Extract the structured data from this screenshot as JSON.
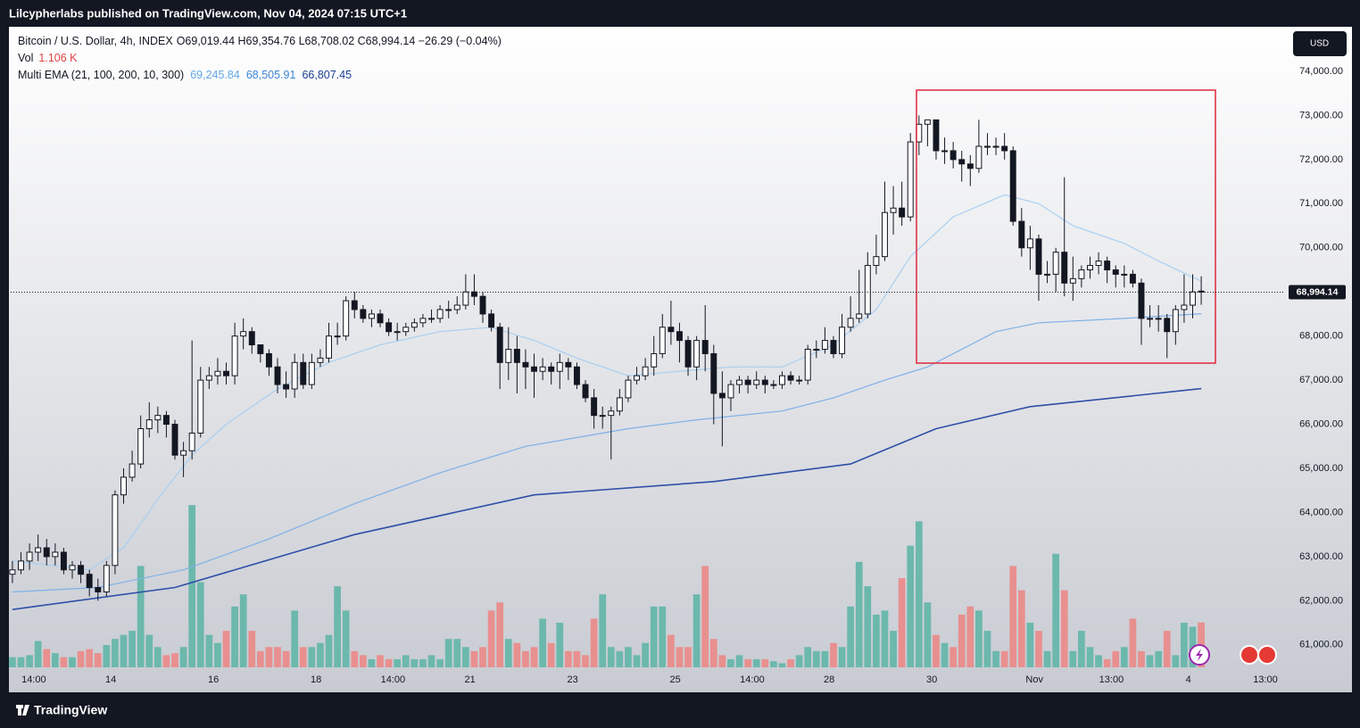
{
  "header": {
    "published": "Lilcypherlabs published on TradingView.com, Nov 04, 2024 07:15 UTC+1"
  },
  "footer": {
    "brand": "TradingView"
  },
  "chart_data": {
    "type": "candlestick",
    "title": "Bitcoin / U.S. Dollar, 4h, INDEX",
    "ohlc_label": "O69,019.44 H69,354.76 L68,708.02 C68,994.14 −26.29 (−0.04%)",
    "currency": "USD",
    "up_color": "#ffffff",
    "down_color": "#131722",
    "open": [
      62600,
      62700,
      62900,
      63100,
      63200,
      63000,
      63100,
      62700,
      62800,
      62600,
      62300,
      62200,
      62800,
      64400,
      64800,
      65100,
      65900,
      66100,
      66200,
      66000,
      65300,
      65400,
      65800,
      67000,
      67100,
      67200,
      67100,
      68000,
      68100,
      67800,
      67600,
      67300,
      66900,
      66800,
      67400,
      66900,
      67400,
      67500,
      68000,
      68000,
      68800,
      68600,
      68400,
      68500,
      68300,
      68100,
      68100,
      68200,
      68300,
      68400,
      68400,
      68600,
      68600,
      68700,
      69000,
      68900,
      68500,
      68200,
      67400,
      67700,
      67400,
      67300,
      67200,
      67300,
      67200,
      67400,
      67300,
      66900,
      66600,
      66200,
      66200,
      66300,
      66600,
      67000,
      67100,
      67300,
      67600,
      68200,
      68100,
      67900,
      67300,
      67900,
      67600,
      66700,
      66600,
      66900,
      67000,
      66900,
      67000,
      66900,
      66900,
      67100,
      67000,
      67000,
      67700,
      67700,
      67900,
      67600,
      68200,
      68400,
      68500,
      69600,
      69800,
      70800,
      70900,
      70700,
      72400,
      72800,
      72900,
      72200,
      72200,
      72000,
      71900,
      71800,
      72300,
      72300,
      72300,
      72200,
      70600,
      70000,
      70200,
      69400,
      69400,
      69900,
      69200,
      69300,
      69500,
      69600,
      69700,
      69500,
      69400,
      69400,
      69200,
      68400,
      68400,
      68400,
      68100,
      68600,
      68700,
      69019.44
    ],
    "high": [
      62900,
      63100,
      63300,
      63500,
      63400,
      63300,
      63200,
      62900,
      62900,
      62700,
      62500,
      62900,
      64500,
      65000,
      65400,
      66200,
      66500,
      66400,
      66300,
      66100,
      65600,
      67900,
      67300,
      67300,
      67500,
      67400,
      68300,
      68400,
      68200,
      67800,
      67700,
      67500,
      67200,
      67600,
      67600,
      67600,
      67700,
      68300,
      68300,
      68900,
      69000,
      68700,
      68600,
      68600,
      68400,
      68300,
      68300,
      68400,
      68500,
      68600,
      68700,
      68800,
      68900,
      69400,
      69400,
      69000,
      68600,
      68300,
      68200,
      68000,
      67700,
      67600,
      67500,
      67400,
      67600,
      67500,
      67400,
      67000,
      66800,
      66400,
      66400,
      66800,
      67100,
      67300,
      67500,
      68000,
      68500,
      68800,
      68300,
      68000,
      68000,
      68700,
      67800,
      67200,
      67000,
      67100,
      67100,
      67200,
      67100,
      67000,
      67200,
      67200,
      67100,
      67800,
      67900,
      68200,
      68000,
      68500,
      68900,
      69500,
      69900,
      70300,
      71500,
      71400,
      71500,
      72600,
      73000,
      72900,
      72800,
      72500,
      72400,
      72200,
      72100,
      72900,
      72600,
      72500,
      72600,
      72300,
      70900,
      70500,
      70300,
      69700,
      70000,
      71600,
      69800,
      69600,
      69800,
      69900,
      69800,
      69600,
      69600,
      69500,
      69300,
      68700,
      68700,
      68500,
      68700,
      69400,
      69400,
      69354.76
    ],
    "low": [
      62400,
      62600,
      62700,
      62900,
      62800,
      62800,
      62600,
      62500,
      62400,
      62100,
      62000,
      62100,
      62600,
      64200,
      64700,
      65000,
      65700,
      65800,
      65700,
      65200,
      64800,
      65200,
      65700,
      66800,
      66900,
      66900,
      66900,
      67700,
      67600,
      67400,
      67100,
      66700,
      66600,
      66600,
      66800,
      66800,
      67300,
      67400,
      67800,
      67900,
      68400,
      68300,
      68200,
      68200,
      68000,
      67900,
      68000,
      68100,
      68200,
      68300,
      68300,
      68400,
      68500,
      68600,
      68700,
      68300,
      68100,
      66800,
      67000,
      66700,
      66800,
      66600,
      67000,
      66900,
      66800,
      67000,
      66800,
      66500,
      65900,
      65900,
      65200,
      66200,
      66500,
      66900,
      67000,
      67100,
      67500,
      67800,
      67400,
      67100,
      67000,
      67200,
      66000,
      65500,
      66300,
      66700,
      66700,
      66800,
      66700,
      66800,
      66800,
      66900,
      66900,
      66900,
      67500,
      67600,
      67500,
      67500,
      68100,
      68300,
      68400,
      69400,
      69700,
      70300,
      70500,
      70600,
      72100,
      72300,
      72000,
      71900,
      71800,
      71500,
      71400,
      71700,
      72100,
      72100,
      72000,
      70500,
      69800,
      69500,
      68800,
      69200,
      69000,
      68900,
      68800,
      69100,
      69300,
      69400,
      69200,
      69100,
      69100,
      69100,
      67800,
      68200,
      68100,
      67500,
      67800,
      68300,
      68400,
      68708.02
    ],
    "close": [
      62700,
      62900,
      63100,
      63200,
      63000,
      63100,
      62700,
      62800,
      62600,
      62300,
      62200,
      62800,
      64400,
      64800,
      65100,
      65900,
      66100,
      66200,
      66000,
      65300,
      65400,
      65800,
      67000,
      67100,
      67200,
      67100,
      68000,
      68100,
      67800,
      67600,
      67300,
      66900,
      66800,
      67400,
      66900,
      67400,
      67500,
      68000,
      68000,
      68800,
      68600,
      68400,
      68500,
      68300,
      68100,
      68100,
      68200,
      68300,
      68400,
      68400,
      68600,
      68600,
      68700,
      69000,
      68900,
      68500,
      68200,
      67400,
      67700,
      67400,
      67300,
      67200,
      67300,
      67200,
      67400,
      67300,
      66900,
      66600,
      66200,
      66200,
      66300,
      66600,
      67000,
      67100,
      67300,
      67600,
      68200,
      68100,
      67900,
      67300,
      67900,
      67600,
      66700,
      66600,
      66900,
      67000,
      66900,
      67000,
      66900,
      66900,
      67100,
      67000,
      67000,
      67700,
      67700,
      67900,
      67600,
      68200,
      68400,
      68500,
      69600,
      69800,
      70800,
      70900,
      70700,
      72400,
      72800,
      72900,
      72200,
      72200,
      72000,
      71900,
      71800,
      72300,
      72300,
      72300,
      72200,
      70600,
      70000,
      70200,
      69400,
      69400,
      69900,
      69200,
      69300,
      69500,
      69600,
      69700,
      69500,
      69400,
      69400,
      69200,
      68400,
      68400,
      68400,
      68100,
      68600,
      68700,
      69000,
      68994.14
    ],
    "last_price_label": "68,994.14",
    "volume": {
      "name": "Vol",
      "value_label": "1.106 K",
      "up_color": "#6cb8ad",
      "down_color": "#e8908f",
      "lim": [
        0,
        4.4
      ],
      "values": [
        0.25,
        0.25,
        0.3,
        0.65,
        0.45,
        0.35,
        0.25,
        0.25,
        0.4,
        0.45,
        0.35,
        0.55,
        0.7,
        0.8,
        0.9,
        2.5,
        0.8,
        0.5,
        0.3,
        0.35,
        0.5,
        4.0,
        2.1,
        0.8,
        0.6,
        0.9,
        1.5,
        1.8,
        0.9,
        0.4,
        0.5,
        0.5,
        0.4,
        1.4,
        0.5,
        0.5,
        0.6,
        0.8,
        2.0,
        1.4,
        0.4,
        0.3,
        0.2,
        0.3,
        0.2,
        0.2,
        0.3,
        0.2,
        0.2,
        0.3,
        0.2,
        0.7,
        0.7,
        0.5,
        0.4,
        0.5,
        1.4,
        1.6,
        0.7,
        0.6,
        0.4,
        0.5,
        1.2,
        0.6,
        1.1,
        0.4,
        0.4,
        0.3,
        1.2,
        1.8,
        0.5,
        0.4,
        0.5,
        0.3,
        0.6,
        1.5,
        1.5,
        0.8,
        0.5,
        0.5,
        1.8,
        2.5,
        0.7,
        0.3,
        0.2,
        0.3,
        0.2,
        0.2,
        0.2,
        0.15,
        0.1,
        0.2,
        0.3,
        0.5,
        0.4,
        0.4,
        0.6,
        0.5,
        1.5,
        2.6,
        2.0,
        1.3,
        1.4,
        0.9,
        2.2,
        3.0,
        3.6,
        1.6,
        0.8,
        0.6,
        0.5,
        1.3,
        1.5,
        1.4,
        0.9,
        0.4,
        0.4,
        2.5,
        1.9,
        1.1,
        0.9,
        0.4,
        2.8,
        1.9,
        0.4,
        0.9,
        0.5,
        0.3,
        0.2,
        0.4,
        0.5,
        1.2,
        0.4,
        0.3,
        0.4,
        0.9,
        0.3,
        1.1,
        1.0,
        1.106
      ]
    },
    "ema": {
      "name": "Multi EMA (21, 100, 200, 10, 300)",
      "series": [
        {
          "color": "#a9cff2",
          "label_color": "#64a8e6",
          "last_label": "69,245.84",
          "x": [
            0,
            9,
            13,
            17,
            21,
            25,
            31,
            37,
            43,
            50,
            56,
            61,
            66,
            72,
            78,
            84,
            90,
            96,
            101,
            105,
            110,
            116,
            120,
            124,
            130,
            134,
            139
          ],
          "values": [
            62900,
            62700,
            63200,
            64300,
            65300,
            66000,
            66800,
            67400,
            67800,
            68100,
            68200,
            67900,
            67500,
            67100,
            67200,
            67300,
            67300,
            67800,
            68600,
            69800,
            70700,
            71200,
            71000,
            70500,
            70100,
            69700,
            69245.84
          ]
        },
        {
          "color": "#7fb0e8",
          "label_color": "#3f86d6",
          "last_label": "68,505.91",
          "x": [
            0,
            10,
            20,
            30,
            40,
            50,
            60,
            72,
            80,
            90,
            96,
            102,
            107,
            115,
            120,
            130,
            139
          ],
          "values": [
            62200,
            62300,
            62700,
            63400,
            64200,
            64900,
            65500,
            65900,
            66100,
            66300,
            66600,
            67000,
            67300,
            68100,
            68300,
            68400,
            68505.91
          ]
        },
        {
          "color": "#2f4fa8",
          "label_color": "#1e3f8f",
          "last_label": "66,807.45",
          "x": [
            0,
            19,
            40,
            61,
            82,
            98,
            108,
            119,
            139
          ],
          "values": [
            61800,
            62300,
            63500,
            64400,
            64700,
            65100,
            65900,
            66400,
            66807.45
          ]
        }
      ]
    },
    "xlim": [
      -0.2,
      148.8
    ],
    "xticks": [
      {
        "value": 2.5,
        "label": "14:00"
      },
      {
        "value": 11.5,
        "label": "14"
      },
      {
        "value": 23.5,
        "label": "16"
      },
      {
        "value": 35.5,
        "label": "18"
      },
      {
        "value": 44.5,
        "label": "14:00"
      },
      {
        "value": 53.5,
        "label": "21"
      },
      {
        "value": 65.5,
        "label": "23"
      },
      {
        "value": 77.5,
        "label": "25"
      },
      {
        "value": 86.5,
        "label": "14:00"
      },
      {
        "value": 95.5,
        "label": "28"
      },
      {
        "value": 107.5,
        "label": "30"
      },
      {
        "value": 119.5,
        "label": "Nov"
      },
      {
        "value": 128.5,
        "label": "13:00"
      },
      {
        "value": 137.5,
        "label": "4"
      },
      {
        "value": 146.5,
        "label": "13:00"
      }
    ],
    "ylim": [
      60450,
      75010
    ],
    "yticks": [
      {
        "value": 61000,
        "label": "61,000.00"
      },
      {
        "value": 62000,
        "label": "62,000.00"
      },
      {
        "value": 63000,
        "label": "63,000.00"
      },
      {
        "value": 64000,
        "label": "64,000.00"
      },
      {
        "value": 65000,
        "label": "65,000.00"
      },
      {
        "value": 66000,
        "label": "66,000.00"
      },
      {
        "value": 67000,
        "label": "67,000.00"
      },
      {
        "value": 68000,
        "label": "68,000.00"
      },
      {
        "value": 69000,
        "label": "69,000.00"
      },
      {
        "value": 70000,
        "label": "70,000.00"
      },
      {
        "value": 71000,
        "label": "71,000.00"
      },
      {
        "value": 72000,
        "label": "72,000.00"
      },
      {
        "value": 73000,
        "label": "73,000.00"
      },
      {
        "value": 74000,
        "label": "74,000.00"
      }
    ]
  }
}
